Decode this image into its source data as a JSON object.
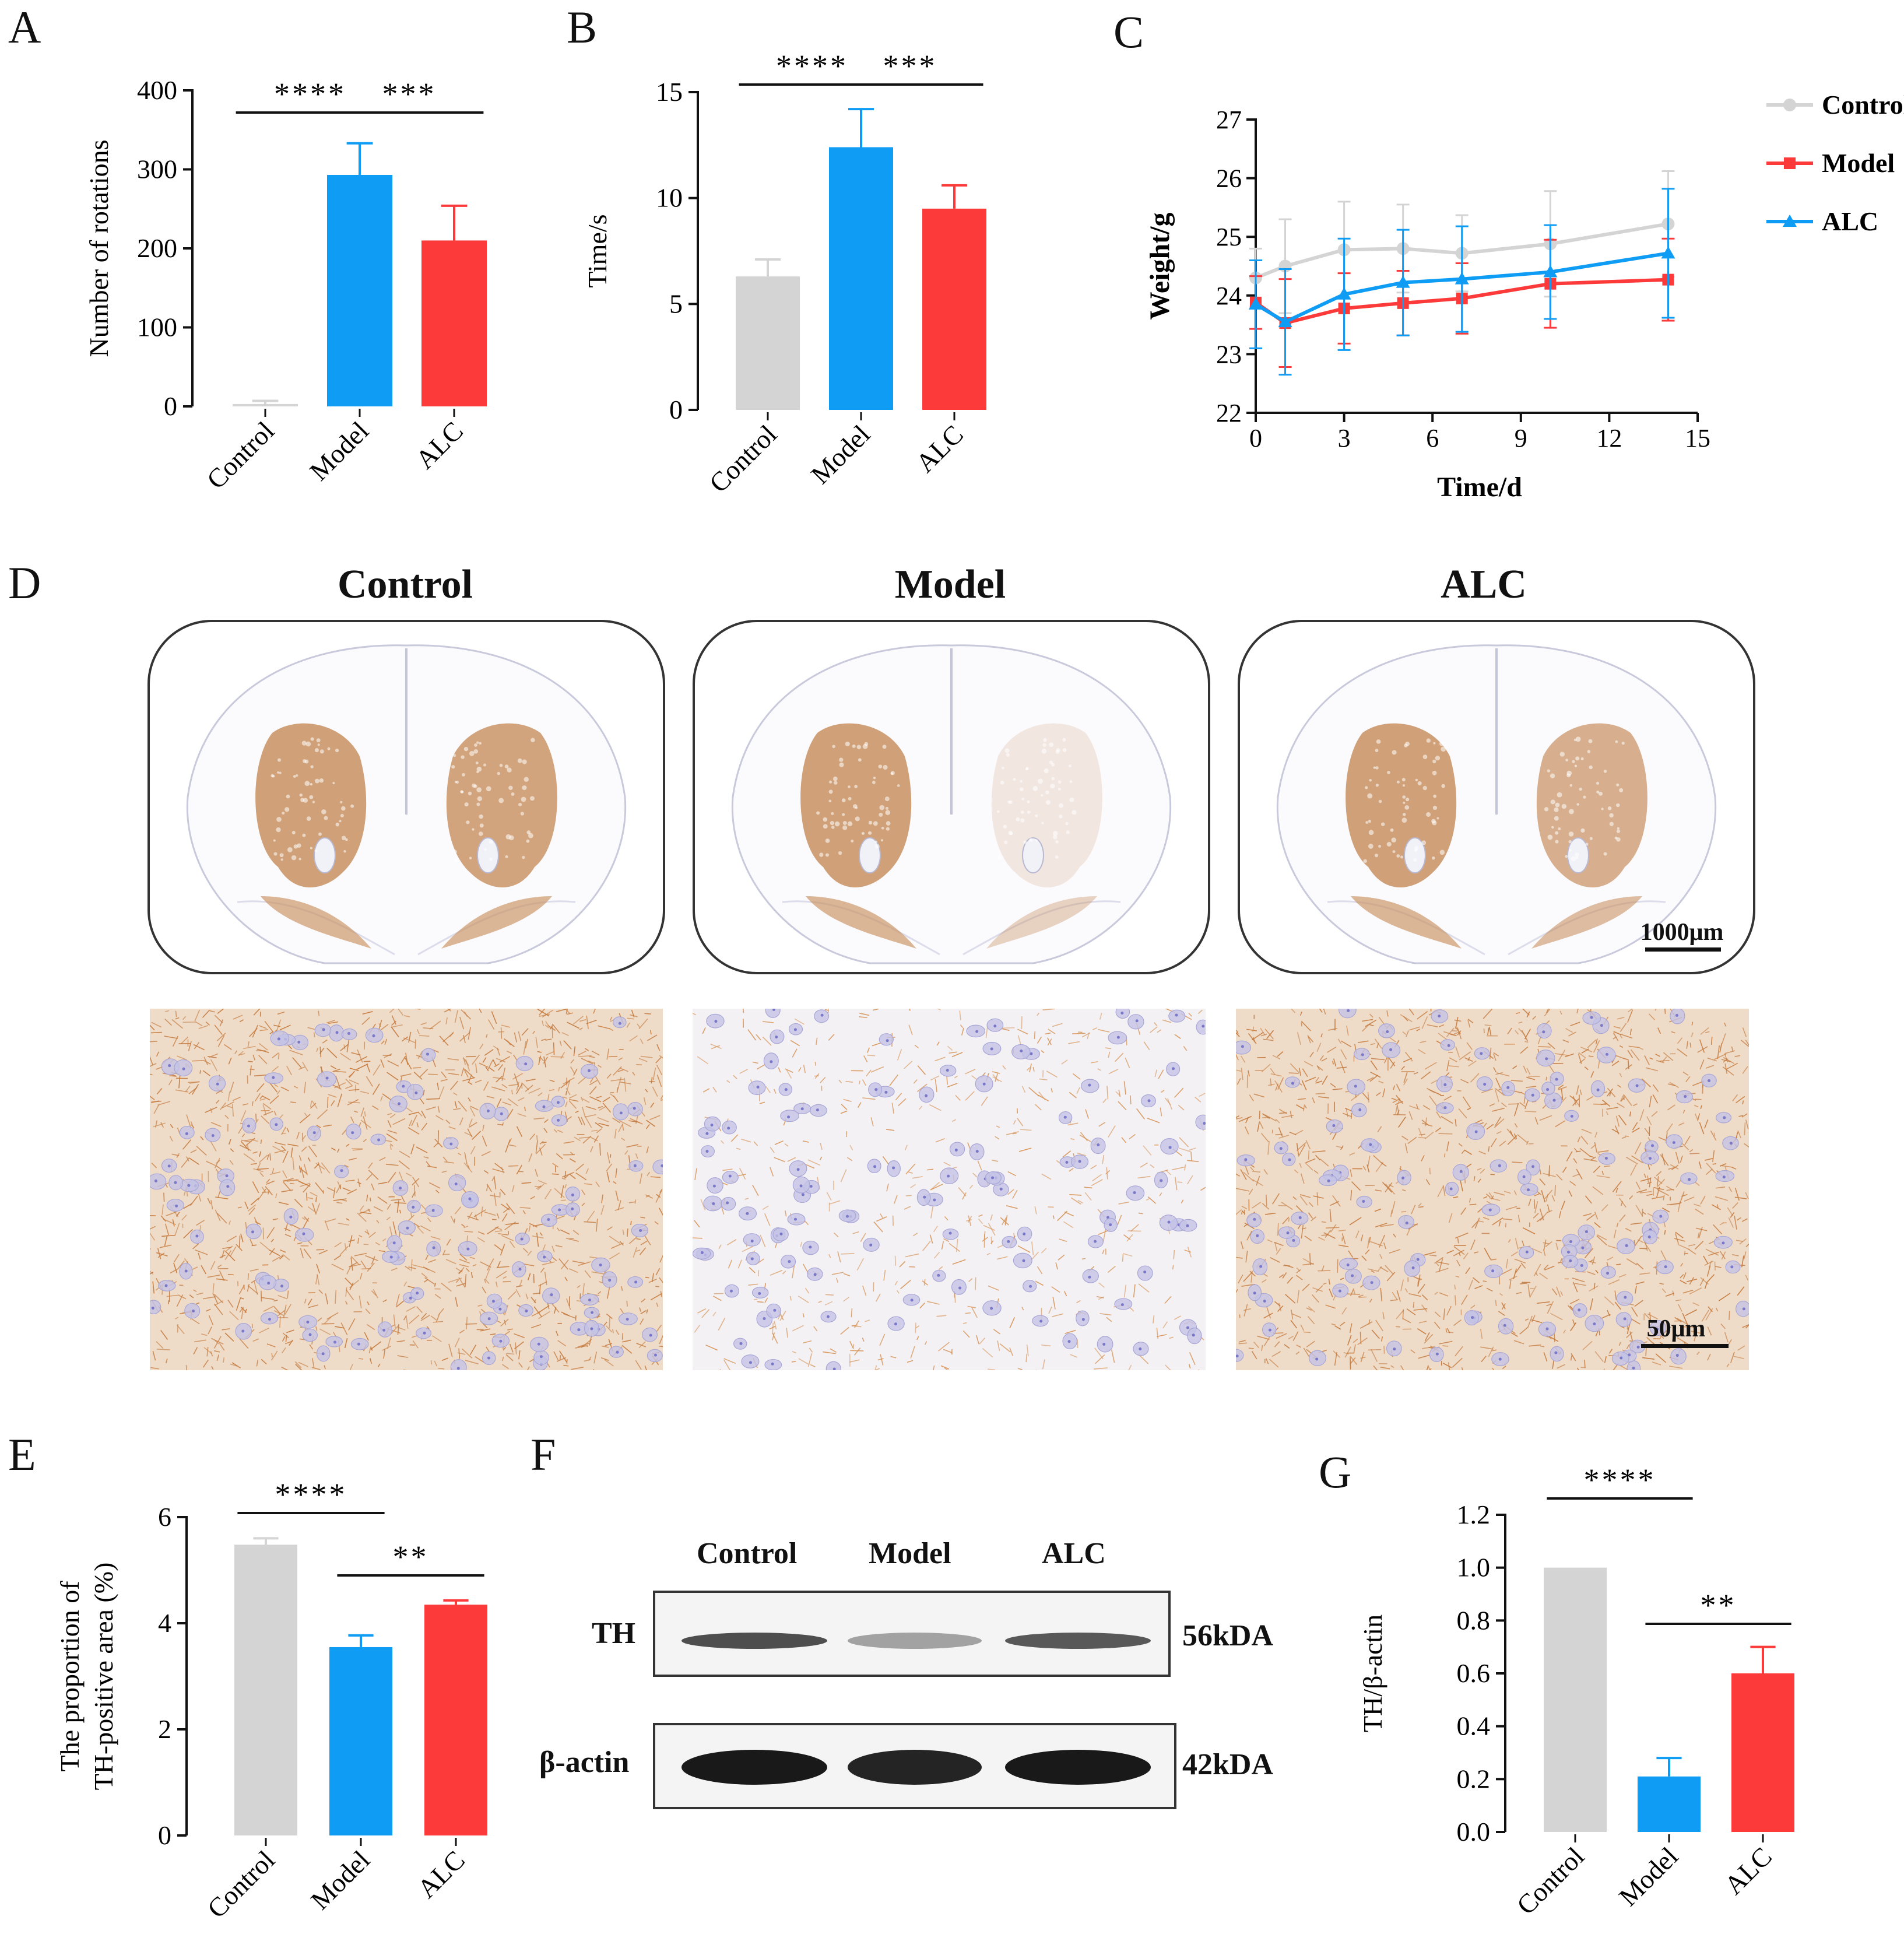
{
  "panel_letters": [
    "A",
    "B",
    "C",
    "D",
    "E",
    "F",
    "G"
  ],
  "colors": {
    "control": "#d4d4d4",
    "model": "#0f9cf5",
    "alc": "#fc3a3a",
    "stain": "#c89060",
    "nuclei": "#7a78c8"
  },
  "chart_data": [
    {
      "id": "A",
      "type": "bar",
      "categories": [
        "Control",
        "Model",
        "ALC"
      ],
      "values": [
        3,
        293,
        210
      ],
      "errors": [
        4,
        40,
        44
      ],
      "ylabel": "Number of rotations",
      "ylim": [
        0,
        400
      ],
      "yticks": [
        0,
        100,
        200,
        300,
        400
      ],
      "significance": [
        {
          "from": 0,
          "to": 1,
          "label": "****"
        },
        {
          "from": 1,
          "to": 2,
          "label": "***"
        }
      ]
    },
    {
      "id": "B",
      "type": "bar",
      "categories": [
        "Control",
        "Model",
        "ALC"
      ],
      "values": [
        6.3,
        12.4,
        9.5
      ],
      "errors": [
        0.8,
        1.8,
        1.1
      ],
      "ylabel": "Time/s",
      "ylim": [
        0,
        15
      ],
      "yticks": [
        0,
        5,
        10,
        15
      ],
      "significance": [
        {
          "from": 0,
          "to": 1,
          "label": "****"
        },
        {
          "from": 1,
          "to": 2,
          "label": "***"
        }
      ]
    },
    {
      "id": "C",
      "type": "line",
      "x": [
        0,
        1,
        3,
        5,
        7,
        10,
        14
      ],
      "series": [
        {
          "name": "Control",
          "color": "#d4d4d4",
          "marker": "circle",
          "values": [
            24.3,
            24.5,
            24.78,
            24.8,
            24.72,
            24.88,
            25.22
          ],
          "errors": [
            0.5,
            0.8,
            0.82,
            0.75,
            0.65,
            0.9,
            0.9
          ]
        },
        {
          "name": "Model",
          "color": "#fc3a3a",
          "marker": "square",
          "values": [
            23.88,
            23.53,
            23.78,
            23.87,
            23.95,
            24.2,
            24.27
          ],
          "errors": [
            0.45,
            0.75,
            0.6,
            0.55,
            0.6,
            0.75,
            0.7
          ]
        },
        {
          "name": "ALC",
          "color": "#0f9cf5",
          "marker": "triangle",
          "values": [
            23.85,
            23.55,
            24.02,
            24.22,
            24.28,
            24.4,
            24.72
          ],
          "errors": [
            0.75,
            0.9,
            0.95,
            0.9,
            0.9,
            0.8,
            1.1
          ]
        }
      ],
      "xlabel": "Time/d",
      "ylabel": "Weight/g",
      "xlim": [
        0,
        15
      ],
      "ylim": [
        22,
        27
      ],
      "xticks": [
        0,
        3,
        6,
        9,
        12,
        15
      ],
      "yticks": [
        22,
        23,
        24,
        25,
        26,
        27
      ],
      "legend": "top-right"
    },
    {
      "id": "E",
      "type": "bar",
      "categories": [
        "Control",
        "Model",
        "ALC"
      ],
      "values": [
        5.48,
        3.55,
        4.35
      ],
      "errors": [
        0.12,
        0.22,
        0.08
      ],
      "ylabel": [
        "The proportion of",
        "TH-positive area (%)"
      ],
      "ylim": [
        0,
        6
      ],
      "yticks": [
        0,
        2,
        4,
        6
      ],
      "significance": [
        {
          "from": 0,
          "to": 1,
          "label": "****"
        },
        {
          "from": 1,
          "to": 2,
          "label": "**"
        }
      ]
    },
    {
      "id": "G",
      "type": "bar",
      "categories": [
        "Control",
        "Model",
        "ALC"
      ],
      "values": [
        1.0,
        0.21,
        0.6
      ],
      "errors": [
        0,
        0.07,
        0.1
      ],
      "ylabel": "TH/β-actin",
      "ylim": [
        0,
        1.2
      ],
      "yticks": [
        "0.0",
        "0.2",
        "0.4",
        "0.6",
        "0.8",
        "1.0",
        "1.2"
      ],
      "significance": [
        {
          "from": 0,
          "to": 1,
          "label": "****"
        },
        {
          "from": 1,
          "to": 2,
          "label": "**"
        }
      ]
    }
  ],
  "histology": {
    "groups": [
      "Control",
      "Model",
      "ALC"
    ],
    "scale_top": "1000μm",
    "scale_bottom": "50μm",
    "stain_density": [
      0.85,
      0.25,
      0.75
    ],
    "left_striatum_stain": [
      1,
      1,
      1
    ],
    "right_striatum_stain": [
      1,
      0.1,
      0.85
    ]
  },
  "western": {
    "lanes": [
      "Control",
      "Model",
      "ALC"
    ],
    "rows": [
      {
        "label": "TH",
        "size": "56kDA",
        "intensity": [
          0.75,
          0.35,
          0.7
        ]
      },
      {
        "label": "β-actin",
        "size": "42kDA",
        "intensity": [
          1,
          0.95,
          1
        ]
      }
    ]
  }
}
